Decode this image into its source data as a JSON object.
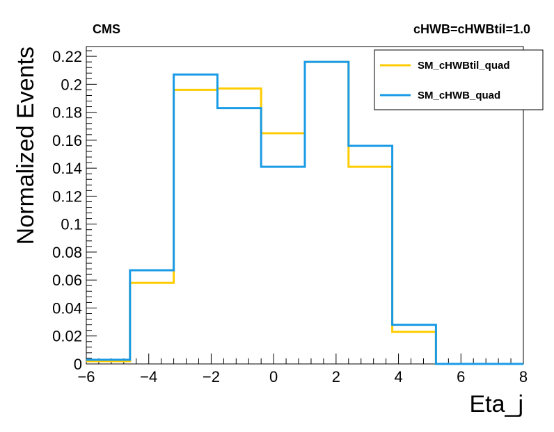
{
  "chart_data": {
    "type": "line",
    "header_left": "CMS",
    "header_right": "cHWB=cHWBtil=1.0",
    "xlabel": "Eta_j",
    "ylabel": "Normalized Events",
    "xlim": [
      -6,
      8
    ],
    "ylim": [
      0,
      0.227
    ],
    "x_ticks": [
      -6,
      -4,
      -2,
      0,
      2,
      4,
      6,
      8
    ],
    "x_tick_labels": [
      "−6",
      "−4",
      "−2",
      "0",
      "2",
      "4",
      "6",
      "8"
    ],
    "y_ticks": [
      0,
      0.02,
      0.04,
      0.06,
      0.08,
      0.1,
      0.12,
      0.14,
      0.16,
      0.18,
      0.2,
      0.22
    ],
    "y_tick_labels": [
      "0",
      "0.02",
      "0.04",
      "0.06",
      "0.08",
      "0.1",
      "0.12",
      "0.14",
      "0.16",
      "0.18",
      "0.2",
      "0.22"
    ],
    "bin_edges": [
      -6,
      -4.6,
      -3.2,
      -1.8,
      -0.4,
      1.0,
      2.4,
      3.8,
      5.2,
      6.6,
      8.0
    ],
    "series": [
      {
        "name": "SM_cHWBtil_quad",
        "color": "#ffcc00",
        "values": [
          0.002,
          0.058,
          0.196,
          0.197,
          0.165,
          0.216,
          0.141,
          0.023,
          0.0,
          0.0
        ]
      },
      {
        "name": "SM_cHWB_quad",
        "color": "#1a9be6",
        "values": [
          0.003,
          0.067,
          0.207,
          0.183,
          0.141,
          0.216,
          0.156,
          0.028,
          0.0,
          0.0
        ]
      }
    ],
    "legend_position": "top-right",
    "grid": false
  }
}
